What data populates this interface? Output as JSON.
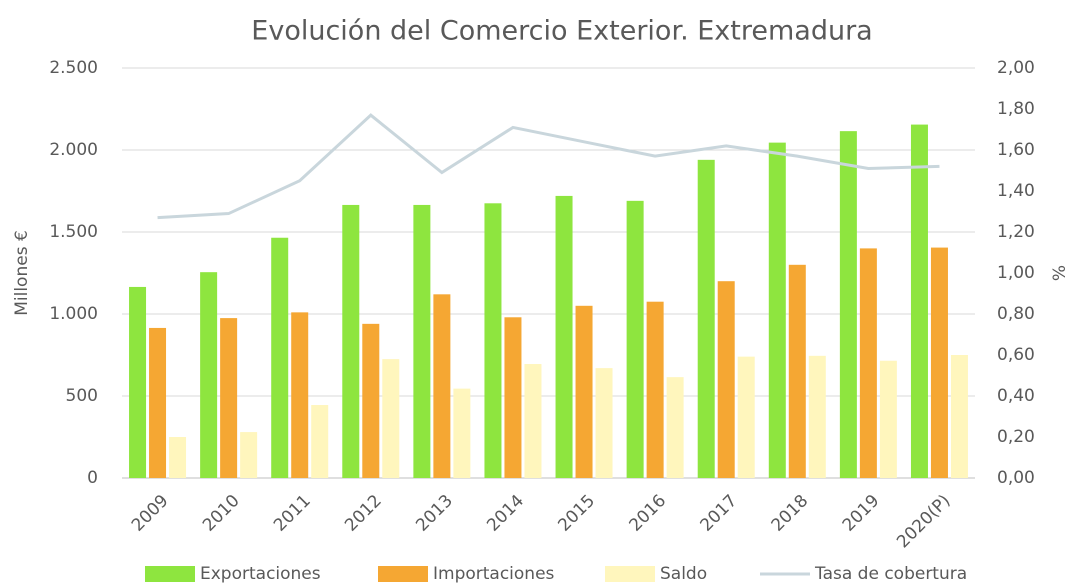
{
  "chart_data": {
    "type": "bar-line",
    "title": "Evolución del Comercio Exterior. Extremadura",
    "ylabel": "Millones €",
    "y2label": "%",
    "categories": [
      "2009",
      "2010",
      "2011",
      "2012",
      "2013",
      "2014",
      "2015",
      "2016",
      "2017",
      "2018",
      "2019",
      "2020(P)"
    ],
    "series": [
      {
        "name": "Exportaciones",
        "type": "bar",
        "color": "#8ee53f",
        "values": [
          1165,
          1255,
          1465,
          1665,
          1665,
          1675,
          1720,
          1690,
          1940,
          2045,
          2115,
          2155
        ]
      },
      {
        "name": "Importaciones",
        "type": "bar",
        "color": "#f5a733",
        "values": [
          915,
          975,
          1010,
          940,
          1120,
          980,
          1050,
          1075,
          1200,
          1300,
          1400,
          1405
        ]
      },
      {
        "name": "Saldo",
        "type": "bar",
        "color": "#fff6bd",
        "values": [
          250,
          280,
          445,
          725,
          545,
          695,
          670,
          615,
          740,
          745,
          715,
          750
        ]
      },
      {
        "name": "Tasa de cobertura",
        "type": "line",
        "axis": "y2",
        "color": "#c9d6dc",
        "values": [
          1.27,
          1.29,
          1.45,
          1.77,
          1.49,
          1.71,
          1.64,
          1.57,
          1.62,
          1.57,
          1.51,
          1.52
        ]
      }
    ],
    "ylim": [
      0,
      2500
    ],
    "yticks": [
      0,
      500,
      {
        "value": 1000,
        "label": "1.000"
      },
      {
        "value": 1500,
        "label": "1.500"
      },
      {
        "value": 2000,
        "label": "2.000"
      },
      {
        "value": 2500,
        "label": "2.500"
      }
    ],
    "y2lim": [
      0,
      2
    ],
    "y2ticks": [
      {
        "value": 0,
        "label": "0,00"
      },
      {
        "value": 0.2,
        "label": "0,20"
      },
      {
        "value": 0.4,
        "label": "0,40"
      },
      {
        "value": 0.6,
        "label": "0,60"
      },
      {
        "value": 0.8,
        "label": "0,80"
      },
      {
        "value": 1,
        "label": "1,00"
      },
      {
        "value": 1.2,
        "label": "1,20"
      },
      {
        "value": 1.4,
        "label": "1,40"
      },
      {
        "value": 1.6,
        "label": "1,60"
      },
      {
        "value": 1.8,
        "label": "1,80"
      },
      {
        "value": 2,
        "label": "2,00"
      }
    ],
    "grid": true,
    "legend": "bottom"
  }
}
